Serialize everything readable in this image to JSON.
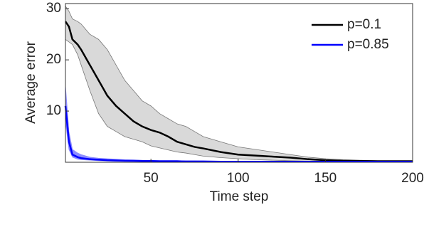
{
  "chart_data": {
    "type": "line",
    "xlabel": "Time step",
    "ylabel": "Average error",
    "x": [
      1,
      3,
      5,
      8,
      10,
      15,
      20,
      25,
      30,
      35,
      40,
      45,
      50,
      55,
      60,
      65,
      70,
      75,
      80,
      90,
      100,
      110,
      120,
      130,
      140,
      150,
      160,
      170,
      180,
      190,
      200
    ],
    "series": [
      {
        "name": "p=0.1",
        "color": "#000000",
        "band_color": "#d9d9d9",
        "values": [
          27.5,
          26.5,
          24,
          23,
          22,
          19,
          16,
          13,
          11,
          9.5,
          8,
          7,
          6.3,
          5.8,
          5,
          4,
          3.5,
          3,
          2.7,
          2,
          1.5,
          1.3,
          1.1,
          0.9,
          0.6,
          0.4,
          0.3,
          0.25,
          0.2,
          0.2,
          0.2
        ],
        "upper": [
          30.5,
          29.5,
          28,
          27.5,
          27,
          25,
          24,
          22,
          19,
          16,
          14,
          12,
          11,
          9.5,
          8.5,
          7.5,
          7,
          6,
          5,
          4,
          3,
          2.5,
          2,
          1.5,
          1,
          0.7,
          0.5,
          0.4,
          0.3,
          0.3,
          0.3
        ],
        "lower": [
          24,
          23.5,
          23,
          21,
          19,
          14,
          9.5,
          7,
          6,
          5,
          4.5,
          4,
          3.2,
          2.8,
          2.4,
          2,
          1.8,
          1.5,
          1.2,
          0.9,
          0.7,
          0.5,
          0.4,
          0.3,
          0.2,
          0.15,
          0.1,
          0.1,
          0.1,
          0.1,
          0.1
        ]
      },
      {
        "name": "p=0.85",
        "color": "#0000ff",
        "band_color": "#8c8cff",
        "values": [
          11,
          4,
          1.5,
          1,
          0.8,
          0.6,
          0.5,
          0.4,
          0.35,
          0.3,
          0.3,
          0.25,
          0.25,
          0.2,
          0.2,
          0.2,
          0.15,
          0.15,
          0.15,
          0.1,
          0.1,
          0.1,
          0.1,
          0.1,
          0.1,
          0.1,
          0.1,
          0.1,
          0.1,
          0.1,
          0.1
        ],
        "upper": [
          15,
          6,
          2.5,
          1.8,
          1.5,
          1,
          0.8,
          0.7,
          0.6,
          0.5,
          0.45,
          0.4,
          0.35,
          0.3,
          0.3,
          0.3,
          0.25,
          0.25,
          0.2,
          0.2,
          0.2,
          0.15,
          0.15,
          0.15,
          0.15,
          0.15,
          0.15,
          0.15,
          0.15,
          0.15,
          0.15
        ],
        "lower": [
          8,
          2.5,
          1,
          0.6,
          0.5,
          0.4,
          0.3,
          0.25,
          0.2,
          0.2,
          0.15,
          0.15,
          0.15,
          0.1,
          0.1,
          0.1,
          0.1,
          0.1,
          0.1,
          0.05,
          0.05,
          0.05,
          0.05,
          0.05,
          0.05,
          0.05,
          0.05,
          0.05,
          0.05,
          0.05,
          0.05
        ]
      }
    ],
    "xlim": [
      1,
      200
    ],
    "ylim": [
      0,
      31
    ],
    "xticks": [
      50,
      100,
      150,
      200
    ],
    "yticks": [
      10,
      20,
      30
    ],
    "legend": "northeast"
  }
}
